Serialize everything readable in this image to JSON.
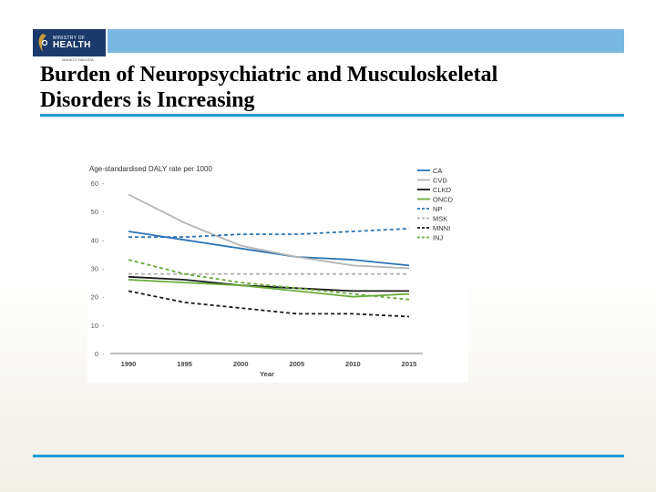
{
  "branding": {
    "logo_small": "MINISTRY OF",
    "logo_big": "HEALTH",
    "logo_sub": "MANATŪ HAUORA"
  },
  "slide": {
    "title_line1": "Burden of Neuropsychiatric and Musculoskeletal",
    "title_line2": "Disorders is Increasing"
  },
  "chart_data": {
    "type": "line",
    "title": "Age-standardised DALY rate per 1000",
    "xlabel": "Year",
    "ylabel": "Age-standardised DALY rate per 1000",
    "x": [
      1990,
      1995,
      2000,
      2005,
      2010,
      2015
    ],
    "xlim": [
      1990,
      2015
    ],
    "ylim": [
      0,
      60
    ],
    "yticks": [
      0,
      10,
      20,
      30,
      40,
      50,
      60
    ],
    "legend_position": "top-right",
    "series": [
      {
        "name": "CA",
        "color": "#2e75b6",
        "dash": "solid",
        "values": [
          43,
          40,
          37,
          34,
          33,
          31
        ]
      },
      {
        "name": "CVD",
        "color": "#b4b4b4",
        "dash": "solid",
        "values": [
          56,
          46,
          38,
          34,
          31,
          30
        ]
      },
      {
        "name": "CLKD",
        "color": "#1a1a1a",
        "dash": "solid",
        "values": [
          27,
          26,
          24,
          23,
          22,
          22
        ]
      },
      {
        "name": "ONCD",
        "color": "#6aaa3a",
        "dash": "solid",
        "values": [
          26,
          25,
          24,
          22,
          20,
          21
        ]
      },
      {
        "name": "NP",
        "color": "#2e75b6",
        "dash": "dashed",
        "values": [
          41,
          41,
          42,
          42,
          43,
          44
        ]
      },
      {
        "name": "MSK",
        "color": "#b4b4b4",
        "dash": "dashed",
        "values": [
          28,
          28,
          28,
          28,
          28,
          28
        ]
      },
      {
        "name": "MNNI",
        "color": "#1a1a1a",
        "dash": "dashed",
        "values": [
          22,
          18,
          16,
          14,
          14,
          13
        ]
      },
      {
        "name": "INJ",
        "color": "#6aaa3a",
        "dash": "dashed",
        "values": [
          33,
          28,
          25,
          23,
          21,
          19
        ]
      }
    ]
  }
}
